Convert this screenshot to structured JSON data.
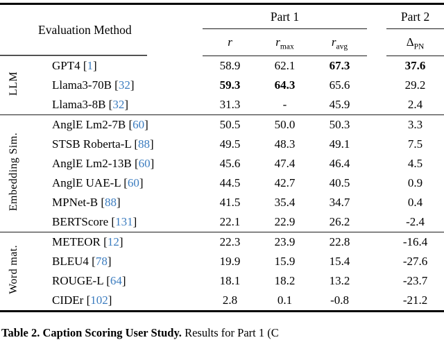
{
  "table": {
    "header": {
      "method_col": "Evaluation Method",
      "part1": "Part 1",
      "part2": "Part 2",
      "cols": [
        {
          "base": "r",
          "sub": ""
        },
        {
          "base": "r",
          "sub": "max"
        },
        {
          "base": "r",
          "sub": "avg"
        },
        {
          "base": "Δ",
          "sub": "PN"
        }
      ]
    },
    "groups": [
      {
        "label": "LLM",
        "rows": [
          {
            "method": "GPT4",
            "cite": "1",
            "values": [
              "58.9",
              "62.1",
              "67.3",
              "37.6"
            ],
            "bold": [
              false,
              false,
              true,
              true
            ]
          },
          {
            "method": "Llama3-70B",
            "cite": "32",
            "values": [
              "59.3",
              "64.3",
              "65.6",
              "29.2"
            ],
            "bold": [
              true,
              true,
              false,
              false
            ]
          },
          {
            "method": "Llama3-8B",
            "cite": "32",
            "values": [
              "31.3",
              "-",
              "45.9",
              "2.4"
            ],
            "bold": [
              false,
              false,
              false,
              false
            ]
          }
        ]
      },
      {
        "label": "Embedding Sim.",
        "rows": [
          {
            "method": "AnglE Lm2-7B",
            "cite": "60",
            "values": [
              "50.5",
              "50.0",
              "50.3",
              "3.3"
            ],
            "bold": [
              false,
              false,
              false,
              false
            ]
          },
          {
            "method": "STSB Roberta-L",
            "cite": "88",
            "values": [
              "49.5",
              "48.3",
              "49.1",
              "7.5"
            ],
            "bold": [
              false,
              false,
              false,
              false
            ]
          },
          {
            "method": "AnglE Lm2-13B",
            "cite": "60",
            "values": [
              "45.6",
              "47.4",
              "46.4",
              "4.5"
            ],
            "bold": [
              false,
              false,
              false,
              false
            ]
          },
          {
            "method": "AnglE UAE-L",
            "cite": "60",
            "values": [
              "44.5",
              "42.7",
              "40.5",
              "0.9"
            ],
            "bold": [
              false,
              false,
              false,
              false
            ]
          },
          {
            "method": "MPNet-B",
            "cite": "88",
            "values": [
              "41.5",
              "35.4",
              "34.7",
              "0.4"
            ],
            "bold": [
              false,
              false,
              false,
              false
            ]
          },
          {
            "method": "BERTScore",
            "cite": "131",
            "values": [
              "22.1",
              "22.9",
              "26.2",
              "-2.4"
            ],
            "bold": [
              false,
              false,
              false,
              false
            ]
          }
        ]
      },
      {
        "label": "Word mat.",
        "rows": [
          {
            "method": "METEOR",
            "cite": "12",
            "values": [
              "22.3",
              "23.9",
              "22.8",
              "-16.4"
            ],
            "bold": [
              false,
              false,
              false,
              false
            ]
          },
          {
            "method": "BLEU4",
            "cite": "78",
            "values": [
              "19.9",
              "15.9",
              "15.4",
              "-27.6"
            ],
            "bold": [
              false,
              false,
              false,
              false
            ]
          },
          {
            "method": "ROUGE-L",
            "cite": "64",
            "values": [
              "18.1",
              "18.2",
              "13.2",
              "-23.7"
            ],
            "bold": [
              false,
              false,
              false,
              false
            ]
          },
          {
            "method": "CIDEr",
            "cite": "102",
            "values": [
              "2.8",
              "0.1",
              "-0.8",
              "-21.2"
            ],
            "bold": [
              false,
              false,
              false,
              false
            ]
          }
        ]
      }
    ]
  },
  "caption": {
    "bold_part": "Table 2. Caption Scoring User Study.",
    "rest": "Results for Part 1 (C"
  },
  "colors": {
    "citation_blue": "#3b7cbf",
    "rule_black": "#000000"
  }
}
